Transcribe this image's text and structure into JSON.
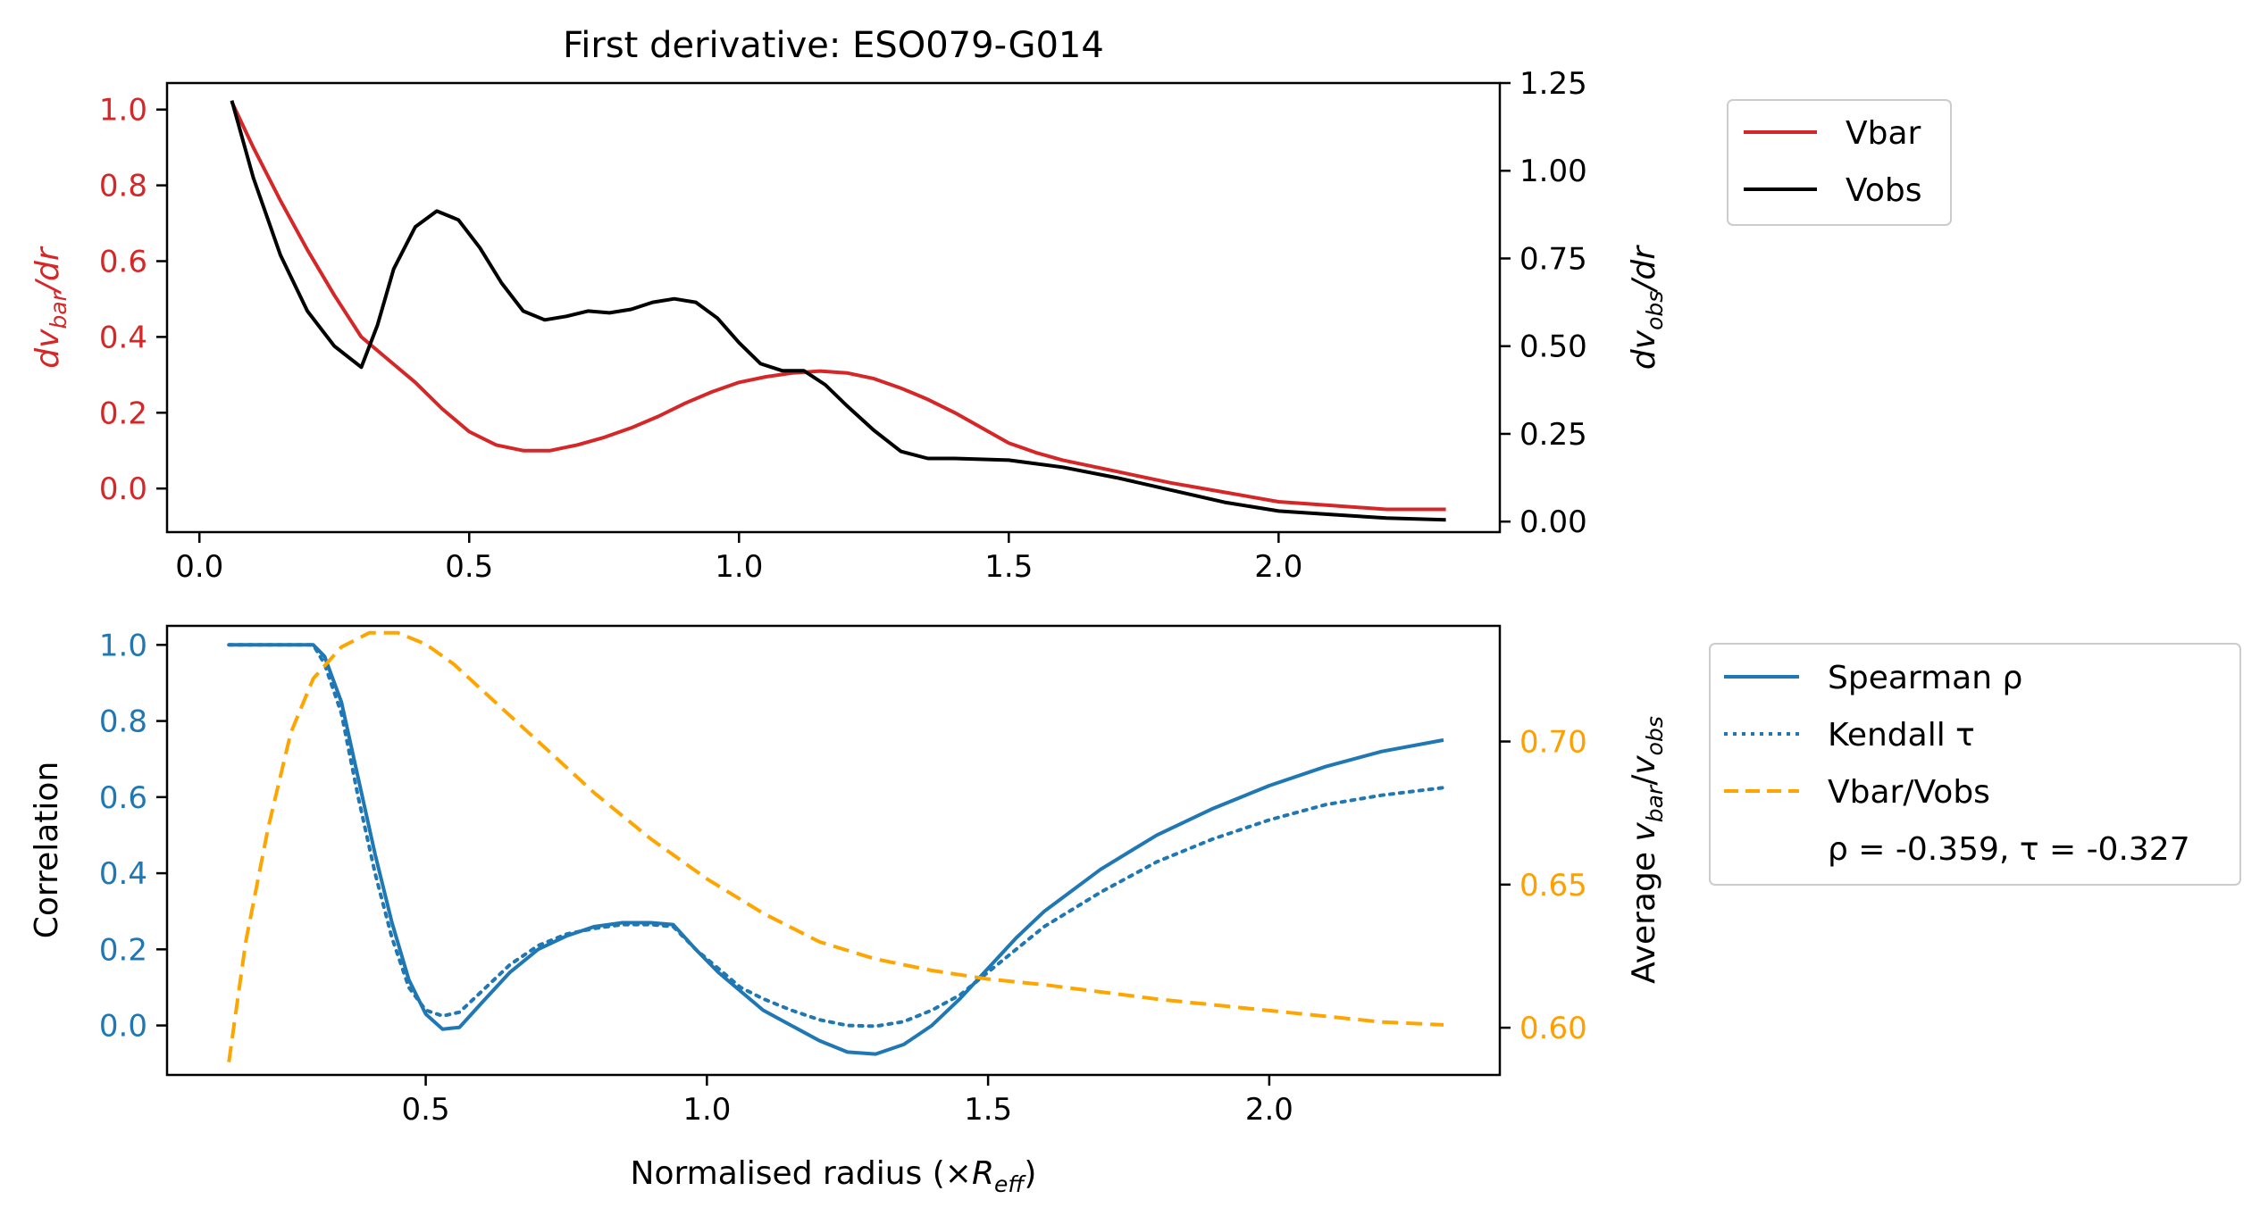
{
  "chart_data": [
    {
      "type": "line",
      "title": "First derivative: ESO079-G014",
      "xlim": [
        -0.06,
        2.41
      ],
      "x_ticks": [
        "0.0",
        "0.5",
        "1.0",
        "1.5",
        "2.0"
      ],
      "left_axis": {
        "label_base": "dv",
        "label_sub": "bar",
        "label_tail": "/dr",
        "color": "#d62728",
        "ylim": [
          -0.115,
          1.07
        ],
        "ticks": [
          "0.0",
          "0.2",
          "0.4",
          "0.6",
          "0.8",
          "1.0"
        ]
      },
      "right_axis": {
        "label_base": "dv",
        "label_sub": "obs",
        "label_tail": "/dr",
        "color": "#000000",
        "ylim": [
          -0.03,
          1.25
        ],
        "ticks": [
          "0.00",
          "0.25",
          "0.50",
          "0.75",
          "1.00",
          "1.25"
        ]
      },
      "legend": {
        "position": "outside-top-right",
        "entries": [
          {
            "label": "Vbar",
            "color": "#d62728",
            "style": "solid"
          },
          {
            "label": "Vobs",
            "color": "#000000",
            "style": "solid"
          }
        ]
      },
      "series": [
        {
          "name": "Vbar",
          "axis": "left",
          "color": "#d62728",
          "style": "solid",
          "x": [
            0.06,
            0.1,
            0.15,
            0.2,
            0.25,
            0.3,
            0.35,
            0.4,
            0.45,
            0.5,
            0.55,
            0.6,
            0.65,
            0.7,
            0.75,
            0.8,
            0.85,
            0.9,
            0.95,
            1.0,
            1.05,
            1.1,
            1.15,
            1.2,
            1.25,
            1.3,
            1.35,
            1.4,
            1.45,
            1.5,
            1.55,
            1.6,
            1.7,
            1.8,
            1.9,
            2.0,
            2.1,
            2.2,
            2.31
          ],
          "y": [
            1.02,
            0.9,
            0.76,
            0.63,
            0.51,
            0.4,
            0.34,
            0.28,
            0.21,
            0.15,
            0.115,
            0.1,
            0.1,
            0.115,
            0.135,
            0.16,
            0.19,
            0.225,
            0.255,
            0.28,
            0.295,
            0.305,
            0.31,
            0.305,
            0.29,
            0.265,
            0.235,
            0.2,
            0.16,
            0.12,
            0.095,
            0.075,
            0.045,
            0.015,
            -0.01,
            -0.035,
            -0.045,
            -0.055,
            -0.055
          ]
        },
        {
          "name": "Vobs",
          "axis": "right",
          "color": "#000000",
          "style": "solid",
          "x": [
            0.06,
            0.1,
            0.15,
            0.2,
            0.25,
            0.3,
            0.33,
            0.36,
            0.4,
            0.44,
            0.48,
            0.52,
            0.56,
            0.6,
            0.64,
            0.68,
            0.72,
            0.76,
            0.8,
            0.84,
            0.88,
            0.92,
            0.96,
            1.0,
            1.04,
            1.08,
            1.12,
            1.16,
            1.2,
            1.25,
            1.3,
            1.35,
            1.4,
            1.5,
            1.6,
            1.7,
            1.8,
            1.9,
            2.0,
            2.1,
            2.2,
            2.31
          ],
          "y": [
            1.2,
            0.98,
            0.76,
            0.6,
            0.5,
            0.44,
            0.56,
            0.72,
            0.84,
            0.885,
            0.86,
            0.78,
            0.68,
            0.6,
            0.575,
            0.585,
            0.6,
            0.595,
            0.605,
            0.625,
            0.635,
            0.625,
            0.58,
            0.51,
            0.45,
            0.43,
            0.43,
            0.39,
            0.33,
            0.26,
            0.2,
            0.18,
            0.18,
            0.175,
            0.155,
            0.125,
            0.09,
            0.055,
            0.03,
            0.02,
            0.01,
            0.005
          ]
        }
      ]
    },
    {
      "type": "line",
      "title": "",
      "xlabel_base": "Normalised radius (×",
      "xlabel_math": "R",
      "xlabel_sub": "eff",
      "xlabel_tail": ")",
      "xlim": [
        0.04,
        2.41
      ],
      "x_ticks": [
        "0.5",
        "1.0",
        "1.5",
        "2.0"
      ],
      "left_axis": {
        "label": "Correlation",
        "color": "#1f77b4",
        "ylim": [
          -0.13,
          1.05
        ],
        "ticks": [
          "0.0",
          "0.2",
          "0.4",
          "0.6",
          "0.8",
          "1.0"
        ]
      },
      "right_axis": {
        "label_base": "Average ",
        "label_v1": "v",
        "label_sub1": "bar",
        "label_slash": "/",
        "label_v2": "v",
        "label_sub2": "obs",
        "color": "#ff9f00",
        "ylim": [
          0.5835,
          0.7404
        ],
        "ticks": [
          "0.60",
          "0.65",
          "0.70"
        ]
      },
      "legend": {
        "position": "outside-right",
        "entries": [
          {
            "label": "Spearman ρ",
            "color": "#1f77b4",
            "style": "solid"
          },
          {
            "label": "Kendall τ",
            "color": "#1f77b4",
            "style": "dotted"
          },
          {
            "label": "Vbar/Vobs",
            "color": "#ffa500",
            "style": "dashed"
          }
        ],
        "note": "ρ = -0.359, τ = -0.327"
      },
      "series": [
        {
          "name": "Spearman ρ",
          "axis": "left",
          "color": "#1f77b4",
          "style": "solid",
          "x": [
            0.15,
            0.2,
            0.25,
            0.3,
            0.32,
            0.35,
            0.38,
            0.41,
            0.44,
            0.47,
            0.5,
            0.53,
            0.56,
            0.6,
            0.65,
            0.7,
            0.75,
            0.8,
            0.85,
            0.9,
            0.94,
            0.98,
            1.02,
            1.06,
            1.1,
            1.15,
            1.2,
            1.25,
            1.3,
            1.35,
            1.4,
            1.45,
            1.5,
            1.55,
            1.6,
            1.7,
            1.8,
            1.9,
            2.0,
            2.1,
            2.2,
            2.31
          ],
          "y": [
            1.0,
            1.0,
            1.0,
            1.0,
            0.97,
            0.85,
            0.65,
            0.45,
            0.27,
            0.12,
            0.03,
            -0.01,
            -0.005,
            0.06,
            0.14,
            0.2,
            0.235,
            0.26,
            0.27,
            0.27,
            0.265,
            0.2,
            0.14,
            0.09,
            0.04,
            0.0,
            -0.04,
            -0.07,
            -0.075,
            -0.05,
            0.0,
            0.07,
            0.15,
            0.23,
            0.3,
            0.41,
            0.5,
            0.57,
            0.63,
            0.68,
            0.72,
            0.75
          ]
        },
        {
          "name": "Kendall τ",
          "axis": "left",
          "color": "#1f77b4",
          "style": "dotted",
          "x": [
            0.15,
            0.2,
            0.25,
            0.3,
            0.32,
            0.35,
            0.38,
            0.41,
            0.44,
            0.47,
            0.5,
            0.53,
            0.56,
            0.6,
            0.65,
            0.7,
            0.75,
            0.8,
            0.85,
            0.9,
            0.94,
            0.98,
            1.02,
            1.06,
            1.1,
            1.15,
            1.2,
            1.25,
            1.3,
            1.35,
            1.4,
            1.45,
            1.5,
            1.55,
            1.6,
            1.7,
            1.8,
            1.9,
            2.0,
            2.1,
            2.2,
            2.31
          ],
          "y": [
            1.0,
            1.0,
            1.0,
            1.0,
            0.95,
            0.82,
            0.6,
            0.4,
            0.23,
            0.1,
            0.04,
            0.025,
            0.035,
            0.09,
            0.16,
            0.21,
            0.24,
            0.255,
            0.265,
            0.265,
            0.26,
            0.2,
            0.15,
            0.1,
            0.07,
            0.04,
            0.015,
            0.0,
            -0.002,
            0.01,
            0.04,
            0.08,
            0.14,
            0.2,
            0.26,
            0.35,
            0.43,
            0.49,
            0.54,
            0.58,
            0.605,
            0.625
          ]
        },
        {
          "name": "Vbar/Vobs",
          "axis": "right",
          "color": "#ffa500",
          "style": "dashed",
          "x": [
            0.15,
            0.18,
            0.22,
            0.26,
            0.3,
            0.35,
            0.4,
            0.45,
            0.5,
            0.55,
            0.6,
            0.7,
            0.8,
            0.9,
            1.0,
            1.1,
            1.2,
            1.3,
            1.4,
            1.5,
            1.6,
            1.8,
            2.0,
            2.2,
            2.31
          ],
          "y": [
            0.588,
            0.63,
            0.67,
            0.703,
            0.722,
            0.733,
            0.738,
            0.738,
            0.734,
            0.727,
            0.718,
            0.7,
            0.682,
            0.666,
            0.652,
            0.64,
            0.63,
            0.624,
            0.62,
            0.617,
            0.615,
            0.61,
            0.606,
            0.602,
            0.601
          ]
        }
      ]
    }
  ]
}
